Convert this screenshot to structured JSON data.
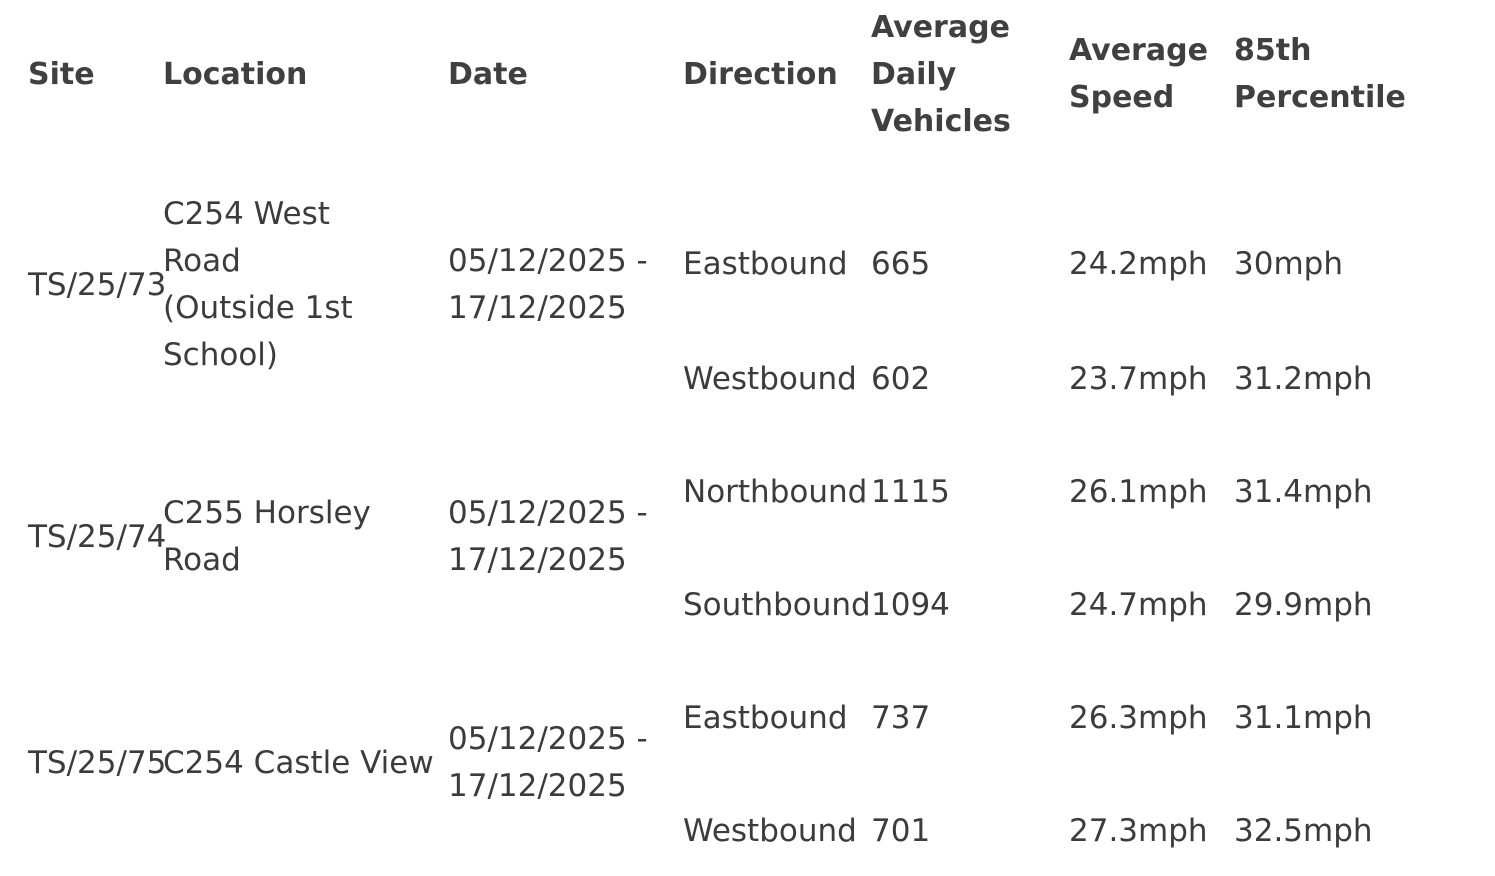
{
  "table": {
    "headers": {
      "site": "Site",
      "location": "Location",
      "date": "Date",
      "direction": "Direction",
      "vehicles": "Average Daily Vehicles",
      "speed": "Average Speed",
      "percentile": "85th Percentile"
    },
    "groups": [
      {
        "site": "TS/25/73",
        "location": "C254 West Road (Outside 1st School)",
        "date": "05/12/2025 - 17/12/2025",
        "rows": [
          {
            "direction": "Eastbound",
            "vehicles": "665",
            "speed": "24.2mph",
            "percentile": "30mph"
          },
          {
            "direction": "Westbound",
            "vehicles": "602",
            "speed": "23.7mph",
            "percentile": "31.2mph"
          }
        ]
      },
      {
        "site": "TS/25/74",
        "location": "C255 Horsley Road",
        "date": "05/12/2025 - 17/12/2025",
        "rows": [
          {
            "direction": "Northbound",
            "vehicles": "1115",
            "speed": "26.1mph",
            "percentile": "31.4mph"
          },
          {
            "direction": "Southbound",
            "vehicles": "1094",
            "speed": "24.7mph",
            "percentile": "29.9mph"
          }
        ]
      },
      {
        "site": "TS/25/75",
        "location": "C254 Castle View",
        "date": "05/12/2025 - 17/12/2025",
        "rows": [
          {
            "direction": "Eastbound",
            "vehicles": "737",
            "speed": "26.3mph",
            "percentile": "31.1mph"
          },
          {
            "direction": "Westbound",
            "vehicles": "701",
            "speed": "27.3mph",
            "percentile": "32.5mph"
          }
        ]
      }
    ]
  }
}
